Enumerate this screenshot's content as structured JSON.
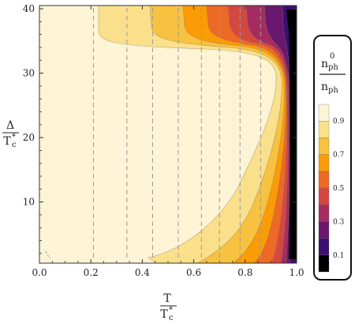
{
  "chart_data": {
    "type": "contour",
    "xlabel": {
      "var": "T",
      "den_var": "T",
      "den_sub": "c",
      "den_sup": "*"
    },
    "ylabel": {
      "var": "Δ",
      "den_var": "T",
      "den_sub": "c",
      "den_sup": "*"
    },
    "xlim": [
      0,
      1.0
    ],
    "ylim": [
      0.5,
      40.5
    ],
    "x_ticks": [
      "0.0",
      "0.2",
      "0.4",
      "0.6",
      "0.8",
      "1.0"
    ],
    "y_ticks": [
      "10",
      "20",
      "30",
      "40"
    ],
    "grid": false,
    "legend_placement": "right",
    "legend": {
      "title_num_var": "n",
      "title_num_sub": "ph",
      "title_num_sup": "0",
      "title_den_var": "n",
      "title_den_sub": "ph",
      "levels": [
        "0.9",
        "0.7",
        "0.5",
        "0.3",
        "0.1"
      ]
    },
    "contour_levels": [
      0.1,
      0.2,
      0.3,
      0.4,
      0.5,
      0.6,
      0.7,
      0.8,
      0.9
    ],
    "band_colors": [
      "#000004",
      "#3b0f70",
      "#6a176e",
      "#a52c60",
      "#d44842",
      "#ed6925",
      "#fb9b06",
      "#f7c240",
      "#fbe08c",
      "#fcf4d4"
    ],
    "vertical_dashed_x": [
      0.21,
      0.34,
      0.44,
      0.54,
      0.63,
      0.7,
      0.78,
      0.86
    ]
  }
}
